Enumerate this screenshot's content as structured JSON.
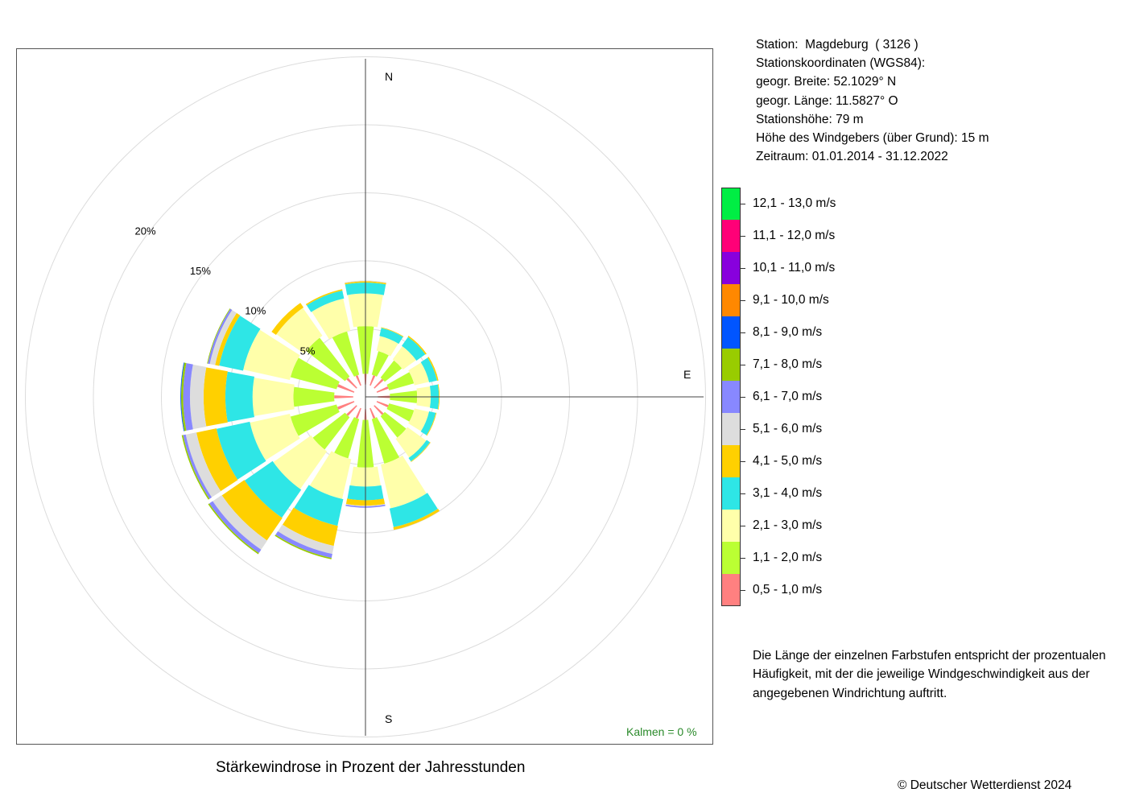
{
  "chart_data": {
    "type": "polar_stacked_bar",
    "title": "Stärkewindrose in Prozent der Jahresstunden",
    "directions": [
      "N",
      "NNE",
      "NE",
      "ENE",
      "E",
      "ESE",
      "SE",
      "SSE",
      "S",
      "SSW",
      "SW",
      "WSW",
      "W",
      "WNW",
      "NW",
      "NNW"
    ],
    "compass_labels": {
      "N": "N",
      "E": "E",
      "S": "S"
    },
    "radial_ticks": [
      {
        "value": 5,
        "label": "5%"
      },
      {
        "value": 10,
        "label": "10%"
      },
      {
        "value": 15,
        "label": "15%"
      },
      {
        "value": 20,
        "label": "20%"
      }
    ],
    "inner_hole_percent": 0.9,
    "rmax": 20,
    "calm": "Kalmen  =  0 %",
    "legend": [
      {
        "label": "12,1 - 13,0 m/s",
        "color": "#00ee44"
      },
      {
        "label": "11,1 - 12,0 m/s",
        "color": "#ff0077"
      },
      {
        "label": "10,1 - 11,0 m/s",
        "color": "#8800dd"
      },
      {
        "label": "9,1 - 10,0 m/s",
        "color": "#ff8800"
      },
      {
        "label": "8,1 - 9,0 m/s",
        "color": "#0055ff"
      },
      {
        "label": "7,1 - 8,0 m/s",
        "color": "#99cc00"
      },
      {
        "label": "6,1 - 7,0 m/s",
        "color": "#8888ff"
      },
      {
        "label": "5,1 - 6,0 m/s",
        "color": "#dddddd"
      },
      {
        "label": "4,1 - 5,0 m/s",
        "color": "#ffd000"
      },
      {
        "label": "3,1 - 4,0 m/s",
        "color": "#2ee6e6"
      },
      {
        "label": "2,1 - 3,0 m/s",
        "color": "#ffffaa"
      },
      {
        "label": "1,1 - 2,0 m/s",
        "color": "#bbff33"
      },
      {
        "label": "0,5 - 1,0 m/s",
        "color": "#ff8080"
      }
    ],
    "series_order_note": "values listed from 0,5-1,0 m/s outward",
    "series": [
      {
        "name": "0,5 - 1,0 m/s",
        "color": "#ff8080",
        "values": [
          0.8,
          0.8,
          0.9,
          0.9,
          0.9,
          0.9,
          0.9,
          0.8,
          0.8,
          0.8,
          1.0,
          1.3,
          1.4,
          1.3,
          1.0,
          0.8
        ]
      },
      {
        "name": "1,1 - 2,0 m/s",
        "color": "#bbff33",
        "values": [
          3.5,
          1.8,
          1.6,
          1.9,
          2.0,
          1.9,
          2.0,
          3.4,
          3.5,
          3.0,
          3.0,
          3.5,
          3.0,
          3.5,
          3.6,
          3.3
        ]
      },
      {
        "name": "2,1 - 3,0 m/s",
        "color": "#ffffaa",
        "values": [
          2.4,
          1.1,
          1.2,
          1.1,
          1.0,
          1.1,
          1.7,
          3.3,
          1.4,
          3.0,
          3.4,
          3.0,
          3.0,
          3.5,
          2.5,
          2.4
        ]
      },
      {
        "name": "3,1 - 4,0 m/s",
        "color": "#2ee6e6",
        "values": [
          0.8,
          0.6,
          0.8,
          0.6,
          0.6,
          0.5,
          0.3,
          1.4,
          1.0,
          2.0,
          2.5,
          2.5,
          2.0,
          1.8,
          0.0,
          0.6
        ]
      },
      {
        "name": "4,1 - 5,0 m/s",
        "color": "#ffd000",
        "values": [
          0.1,
          0.05,
          0.1,
          0.1,
          0.05,
          0.05,
          0.05,
          0.2,
          0.4,
          1.5,
          2.0,
          1.5,
          1.6,
          0.3,
          0.4,
          0.1
        ]
      },
      {
        "name": "5,1 - 6,0 m/s",
        "color": "#dddddd",
        "values": [
          0.05,
          0.0,
          0.0,
          0.0,
          0.0,
          0.0,
          0.0,
          0.0,
          0.05,
          0.6,
          0.8,
          0.8,
          1.0,
          0.4,
          0.0,
          0.0
        ]
      },
      {
        "name": "6,1 - 7,0 m/s",
        "color": "#8888ff",
        "values": [
          0.0,
          0.0,
          0.0,
          0.0,
          0.0,
          0.0,
          0.0,
          0.0,
          0.1,
          0.3,
          0.3,
          0.2,
          0.5,
          0.15,
          0.0,
          0.0
        ]
      },
      {
        "name": "7,1 - 8,0 m/s",
        "color": "#99cc00",
        "values": [
          0.0,
          0.0,
          0.0,
          0.0,
          0.0,
          0.0,
          0.0,
          0.0,
          0.0,
          0.1,
          0.1,
          0.1,
          0.15,
          0.05,
          0.0,
          0.0
        ]
      },
      {
        "name": "8,1 - 9,0 m/s",
        "color": "#0055ff",
        "values": [
          0.0,
          0.0,
          0.0,
          0.0,
          0.0,
          0.0,
          0.0,
          0.0,
          0.0,
          0.0,
          0.0,
          0.0,
          0.05,
          0.0,
          0.0,
          0.0
        ]
      }
    ]
  },
  "station": {
    "line1": "Station:  Magdeburg  ( 3126 )",
    "line2": "Stationskoordinaten (WGS84):",
    "line3": "geogr. Breite: 52.1029° N",
    "line4": "geogr. Länge: 11.5827° O",
    "line5": "Stationshöhe: 79 m",
    "line6": "Höhe des Windgebers (über Grund): 15 m",
    "line7": "Zeitraum: 01.01.2014 - 31.12.2022"
  },
  "note": {
    "line1": "Die Länge der einzelnen Farbstufen entspricht der prozentualen",
    "line2": "Häufigkeit, mit der die jeweilige Windgeschwindigkeit aus der",
    "line3": "angegebenen Windrichtung auftritt."
  },
  "title": "Stärkewindrose in Prozent der Jahresstunden",
  "copyright": "© Deutscher Wetterdienst  2024"
}
